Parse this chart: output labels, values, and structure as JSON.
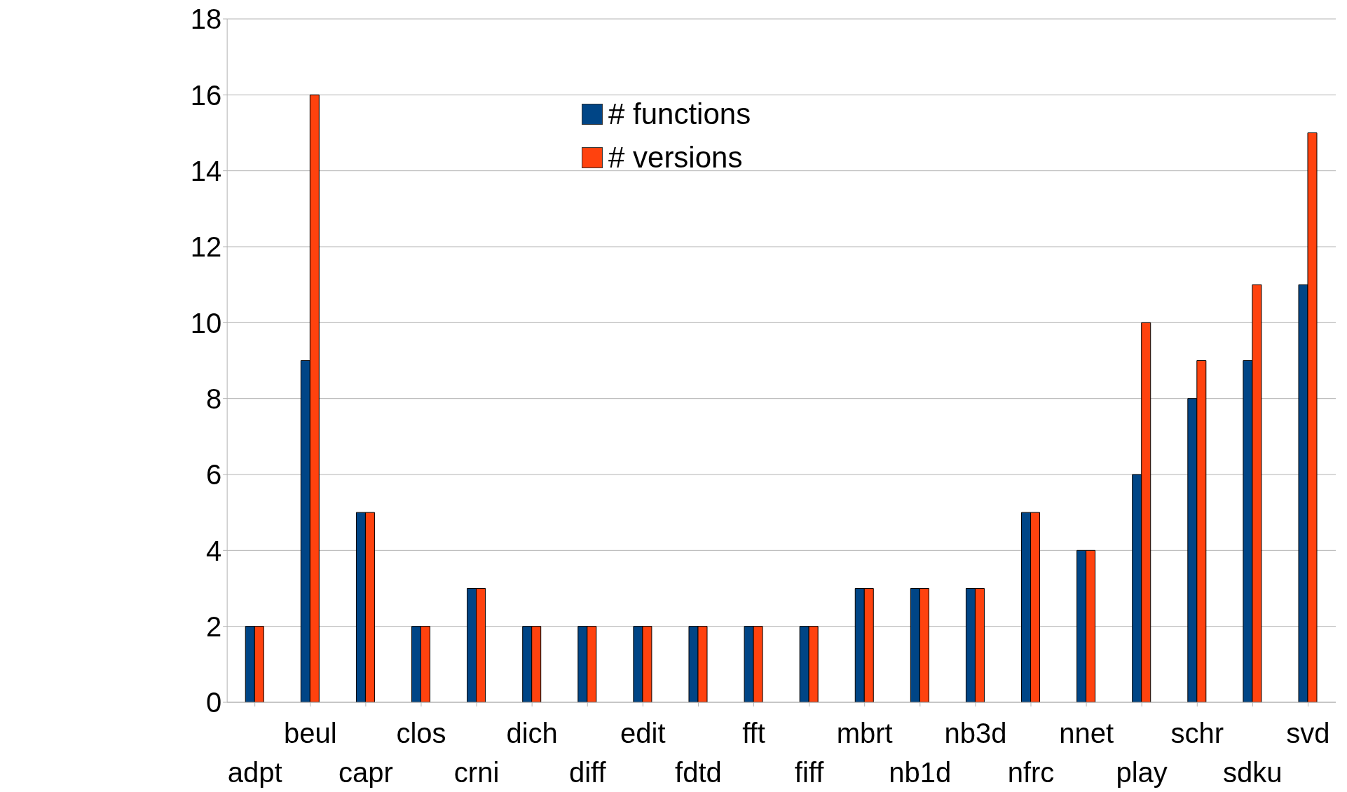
{
  "chart_data": {
    "type": "bar",
    "categories": [
      "adpt",
      "beul",
      "capr",
      "clos",
      "crni",
      "dich",
      "diff",
      "edit",
      "fdtd",
      "fft",
      "fiff",
      "mbrt",
      "nb1d",
      "nb3d",
      "nfrc",
      "nnet",
      "play",
      "schr",
      "sdku",
      "svd"
    ],
    "series": [
      {
        "name": "# functions",
        "color": "#004586",
        "values": [
          2,
          9,
          5,
          2,
          3,
          2,
          2,
          2,
          2,
          2,
          2,
          3,
          3,
          3,
          5,
          4,
          6,
          8,
          9,
          11
        ]
      },
      {
        "name": "# versions",
        "color": "#ff420e",
        "values": [
          2,
          16,
          5,
          2,
          3,
          2,
          2,
          2,
          2,
          2,
          2,
          3,
          3,
          3,
          5,
          4,
          10,
          9,
          11,
          15
        ]
      }
    ],
    "ylim": [
      0,
      18
    ],
    "yticks": [
      0,
      2,
      4,
      6,
      8,
      10,
      12,
      14,
      16,
      18
    ],
    "grid": "y",
    "legend": "top"
  }
}
